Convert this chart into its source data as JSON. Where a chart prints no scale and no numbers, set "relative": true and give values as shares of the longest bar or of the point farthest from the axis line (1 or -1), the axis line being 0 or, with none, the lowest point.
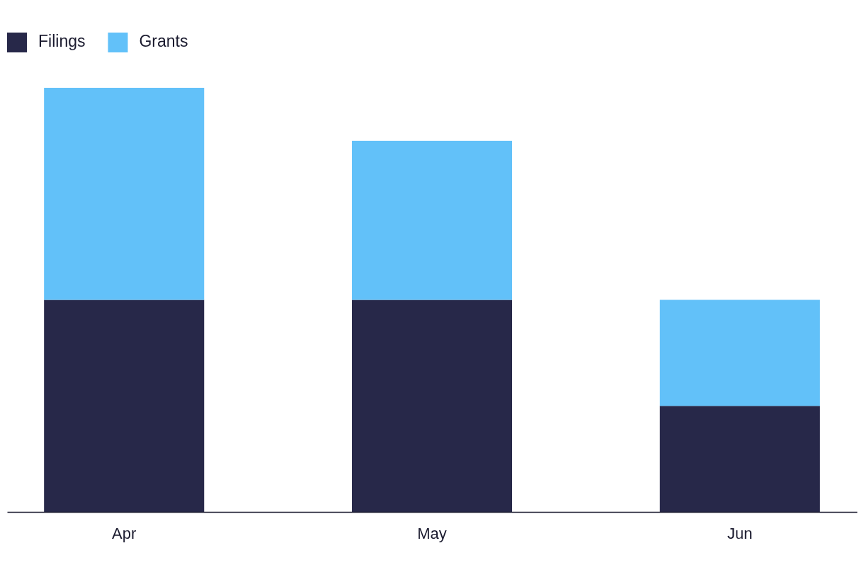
{
  "chart_data": {
    "type": "bar",
    "stacked": true,
    "relative": true,
    "legend": "top left",
    "categories": [
      "Apr",
      "May",
      "Jun"
    ],
    "series": [
      {
        "name": "Filings",
        "color": "#272849",
        "values": [
          0.5,
          0.5,
          0.25
        ]
      },
      {
        "name": "Grants",
        "color": "#62c1f9",
        "values": [
          0.5,
          0.375,
          0.25
        ]
      }
    ]
  }
}
